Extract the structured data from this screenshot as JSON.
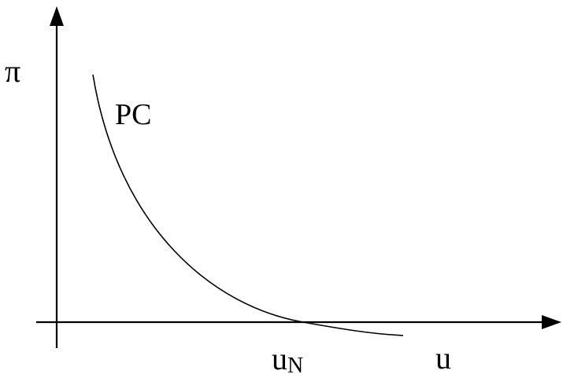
{
  "axes": {
    "y_label": "π",
    "x_label": "u"
  },
  "curve": {
    "label": "PC"
  },
  "x_marker": {
    "base": "u",
    "subscript": "N"
  }
}
